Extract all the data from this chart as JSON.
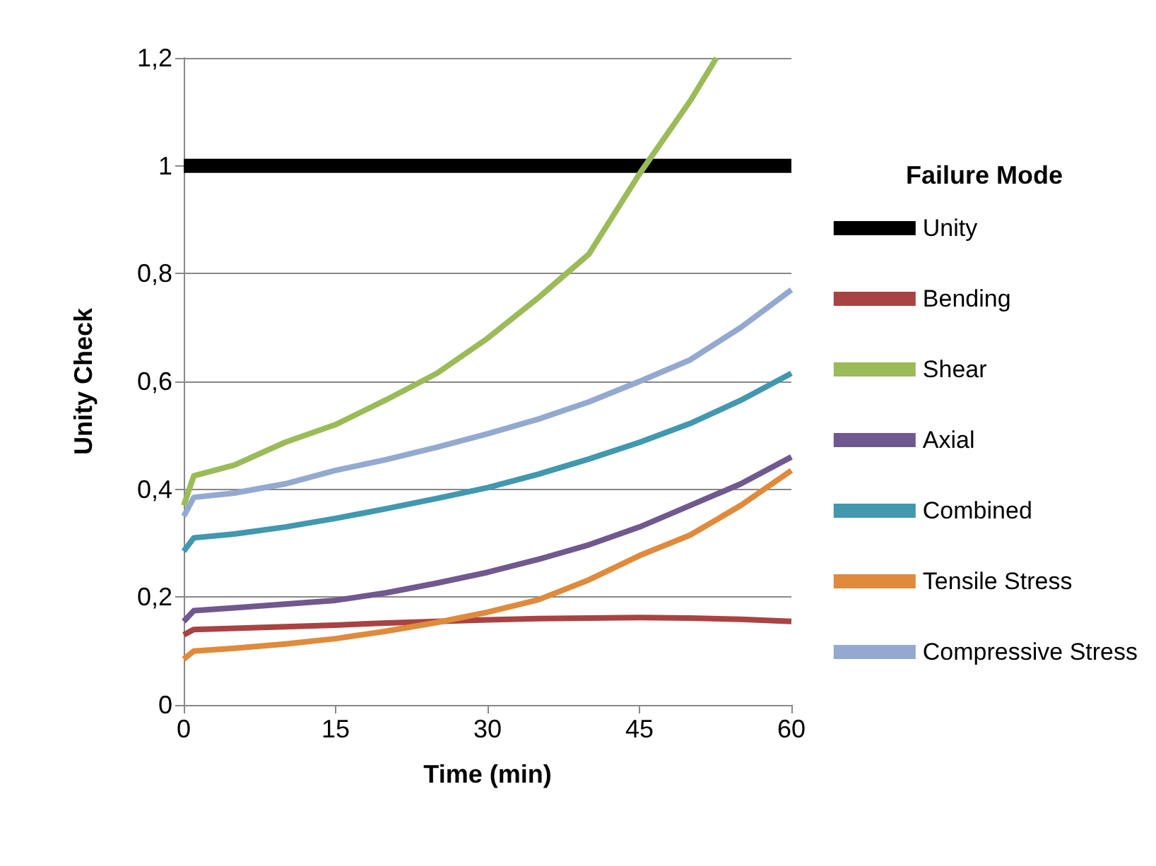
{
  "chart_data": {
    "type": "line",
    "xlabel": "Time (min)",
    "ylabel": "Unity Check",
    "legend_title": "Failure Mode",
    "x": [
      0,
      1,
      5,
      10,
      15,
      20,
      25,
      30,
      35,
      40,
      45,
      50,
      55,
      60
    ],
    "xlim": [
      0,
      60
    ],
    "xticks": [
      0,
      15,
      30,
      45,
      60
    ],
    "ylim": [
      0,
      1.2
    ],
    "yticks": [
      {
        "value": 0,
        "label": "0"
      },
      {
        "value": 0.2,
        "label": "0,2"
      },
      {
        "value": 0.4,
        "label": "0,4"
      },
      {
        "value": 0.6,
        "label": "0,6"
      },
      {
        "value": 0.8,
        "label": "0,8"
      },
      {
        "value": 1,
        "label": "1"
      },
      {
        "value": 1.2,
        "label": "1,2"
      }
    ],
    "grid": "y",
    "legend": "right",
    "marker": "none",
    "line_style": "solid",
    "series": [
      {
        "name": "Unity",
        "color": "#000000",
        "x": [
          0,
          60
        ],
        "values": [
          1,
          1
        ]
      },
      {
        "name": "Bending",
        "color": "#a94343",
        "values": [
          0.13,
          0.14,
          0.142,
          0.145,
          0.148,
          0.152,
          0.155,
          0.158,
          0.16,
          0.161,
          0.162,
          0.161,
          0.159,
          0.155
        ]
      },
      {
        "name": "Shear",
        "color": "#9bbb59",
        "x": [
          0,
          1,
          5,
          10,
          15,
          20,
          25,
          30,
          35,
          40,
          45,
          50,
          52.6
        ],
        "values": [
          0.37,
          0.425,
          0.445,
          0.487,
          0.52,
          0.566,
          0.615,
          0.68,
          0.755,
          0.836,
          0.985,
          1.12,
          1.2
        ]
      },
      {
        "name": "Axial",
        "color": "#71588f",
        "values": [
          0.155,
          0.175,
          0.18,
          0.187,
          0.194,
          0.208,
          0.226,
          0.246,
          0.27,
          0.297,
          0.33,
          0.37,
          0.41,
          0.46
        ]
      },
      {
        "name": "Combined",
        "color": "#4198af",
        "values": [
          0.285,
          0.31,
          0.317,
          0.33,
          0.346,
          0.364,
          0.383,
          0.403,
          0.428,
          0.456,
          0.487,
          0.522,
          0.565,
          0.615
        ]
      },
      {
        "name": "Tensile Stress",
        "color": "#e08a3c",
        "values": [
          0.085,
          0.1,
          0.105,
          0.113,
          0.123,
          0.137,
          0.153,
          0.172,
          0.195,
          0.232,
          0.277,
          0.315,
          0.37,
          0.435
        ]
      },
      {
        "name": "Compressive Stress",
        "color": "#93a9d0",
        "values": [
          0.35,
          0.385,
          0.393,
          0.41,
          0.435,
          0.455,
          0.478,
          0.503,
          0.53,
          0.562,
          0.6,
          0.64,
          0.7,
          0.77
        ]
      }
    ]
  }
}
